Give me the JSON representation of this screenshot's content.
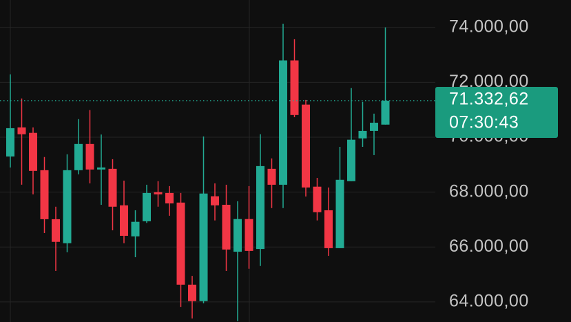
{
  "chart_data": {
    "type": "candlestick",
    "open": [
      69300,
      70360,
      70160,
      68800,
      67015,
      66140,
      68800,
      69755,
      68825,
      68850,
      67520,
      66390,
      66940,
      68000,
      67970,
      67620,
      64630,
      64030,
      67850,
      67540,
      65830,
      67020,
      65930,
      68850,
      68270,
      72800,
      71190,
      68200,
      67340,
      65960,
      68400,
      69960,
      70230,
      70460
    ],
    "high": [
      72290,
      71413,
      70360,
      69280,
      67470,
      69380,
      70660,
      70990,
      70100,
      69200,
      68420,
      67340,
      68270,
      68400,
      68220,
      67970,
      64950,
      70030,
      68320,
      68270,
      67670,
      68220,
      70110,
      69230,
      74130,
      73570,
      71360,
      68520,
      68170,
      69650,
      71790,
      71290,
      70860,
      74000
    ],
    "low": [
      68900,
      68272,
      67920,
      66510,
      65130,
      65810,
      68650,
      68320,
      67540,
      66610,
      66140,
      65630,
      66880,
      67470,
      67140,
      63820,
      63400,
      63950,
      66970,
      65130,
      63300,
      65210,
      65310,
      67420,
      67420,
      70730,
      67840,
      66970,
      65680,
      65960,
      68400,
      69650,
      69350,
      70460
    ],
    "close": [
      70330,
      70110,
      68775,
      67015,
      66190,
      68800,
      69755,
      68825,
      68900,
      67470,
      66410,
      66920,
      67970,
      67920,
      67590,
      64630,
      64030,
      67950,
      67520,
      65910,
      67020,
      65860,
      68950,
      68270,
      72800,
      70810,
      68170,
      67270,
      65960,
      68450,
      69910,
      70230,
      70530,
      71332.62
    ],
    "up_color": "#22ab94",
    "down_color": "#f23645",
    "ylim": [
      63270,
      75000
    ],
    "yticks": [
      {
        "value": 64000,
        "label": "64.000,00"
      },
      {
        "value": 66000,
        "label": "66.000,00"
      },
      {
        "value": 68000,
        "label": "68.000,00"
      },
      {
        "value": 70000,
        "label": "70.000,00"
      },
      {
        "value": 72000,
        "label": "72.000,00"
      },
      {
        "value": 74000,
        "label": "74.000,00"
      }
    ],
    "grid": true,
    "last_price": {
      "value": 71332.62,
      "label": "71.332,62"
    },
    "countdown": "07:30:43"
  }
}
